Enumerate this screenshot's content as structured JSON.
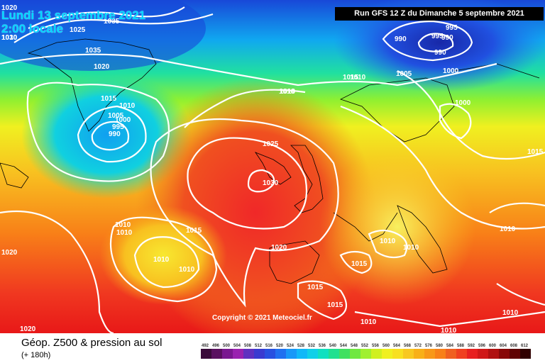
{
  "header": {
    "valid_date": "Lundi 13 septembre 2021",
    "valid_time": "2:00 locale",
    "run_info": "Run GFS 12 Z du Dimanche 5 septembre 2021"
  },
  "map": {
    "copyright": "Copyright © 2021 Meteociel.fr",
    "pressure_labels": [
      "1020",
      "1025",
      "1035",
      "1030",
      "1035",
      "1020",
      "1010",
      "1015",
      "1010",
      "1005",
      "1000",
      "995",
      "990",
      "1010",
      "990",
      "995",
      "995",
      "990",
      "990",
      "1000",
      "1005",
      "1010",
      "1010",
      "1000",
      "1025",
      "1030",
      "1015",
      "1010",
      "1010",
      "1015",
      "1020",
      "1010",
      "1010",
      "1020",
      "1015",
      "1015",
      "1015",
      "1010",
      "1010",
      "1010",
      "1015",
      "1010",
      "1010",
      "1020",
      "1010"
    ],
    "colors": {
      "low_center": "#1830c8",
      "high_center": "#f03030",
      "isobar": "#ffffff",
      "coastline": "#000000"
    }
  },
  "footer": {
    "title": "Géop. Z500 & pression au sol",
    "subtitle": "(+ 180h)",
    "scale_labels": [
      "492",
      "496",
      "500",
      "504",
      "508",
      "512",
      "516",
      "520",
      "524",
      "528",
      "532",
      "536",
      "540",
      "544",
      "548",
      "552",
      "556",
      "560",
      "564",
      "568",
      "572",
      "576",
      "580",
      "584",
      "588",
      "592",
      "596",
      "600",
      "604",
      "608",
      "612"
    ],
    "scale_colors": [
      "#3a0a3a",
      "#5a1060",
      "#7a1890",
      "#9a22b0",
      "#6030c0",
      "#3a3ad0",
      "#2850e0",
      "#2070f0",
      "#1898f8",
      "#10b8f8",
      "#10d0e8",
      "#10e0c0",
      "#20e090",
      "#40e060",
      "#70e840",
      "#a0f030",
      "#d0f020",
      "#f0f020",
      "#f8e020",
      "#f8c820",
      "#f8b018",
      "#f89818",
      "#f88018",
      "#f06020",
      "#f04020",
      "#e82020",
      "#d01818",
      "#b01010",
      "#880808",
      "#600404",
      "#300000"
    ]
  }
}
